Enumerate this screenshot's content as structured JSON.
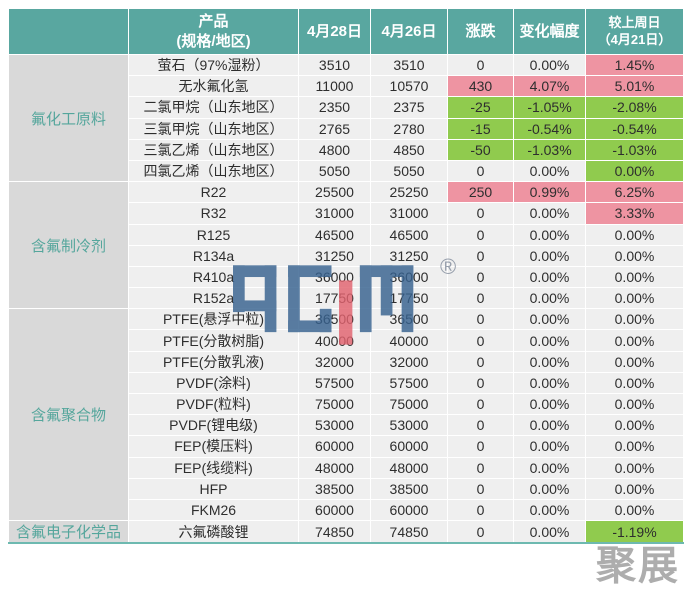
{
  "table": {
    "headers": {
      "category": "",
      "product_line1": "产品",
      "product_line2": "(规格/地区)",
      "date1": "4月28日",
      "date2": "4月26日",
      "change": "涨跌",
      "change_pct": "变化幅度",
      "week_line1": "较上周日",
      "week_line2": "（4月21日）"
    }
  },
  "chart_data": {
    "type": "table",
    "title": "氟化工产品价格涨跌表",
    "columns": [
      "产品(规格/地区)",
      "4月28日",
      "4月26日",
      "涨跌",
      "变化幅度",
      "较上周日（4月21日）"
    ],
    "categories": [
      {
        "label": "氟化工原料",
        "rows": 6
      },
      {
        "label": "含氟制冷剂",
        "rows": 6
      },
      {
        "label": "含氟聚合物",
        "rows": 10
      },
      {
        "label": "含氟电子化学品",
        "rows": 1
      }
    ],
    "rows": [
      {
        "product": "萤石（97%湿粉）",
        "apr28": "3510",
        "apr26": "3510",
        "change": "0",
        "change_pct": "0.00%",
        "vs_last_sun": "1.45%",
        "highlight": [
          "none",
          "none",
          "up"
        ]
      },
      {
        "product": "无水氟化氢",
        "apr28": "11000",
        "apr26": "10570",
        "change": "430",
        "change_pct": "4.07%",
        "vs_last_sun": "5.01%",
        "highlight": [
          "up",
          "up",
          "up"
        ]
      },
      {
        "product": "二氯甲烷（山东地区）",
        "apr28": "2350",
        "apr26": "2375",
        "change": "-25",
        "change_pct": "-1.05%",
        "vs_last_sun": "-2.08%",
        "highlight": [
          "down",
          "down",
          "down"
        ]
      },
      {
        "product": "三氯甲烷（山东地区）",
        "apr28": "2765",
        "apr26": "2780",
        "change": "-15",
        "change_pct": "-0.54%",
        "vs_last_sun": "-0.54%",
        "highlight": [
          "down",
          "down",
          "down"
        ]
      },
      {
        "product": "三氯乙烯（山东地区）",
        "apr28": "4800",
        "apr26": "4850",
        "change": "-50",
        "change_pct": "-1.03%",
        "vs_last_sun": "-1.03%",
        "highlight": [
          "down",
          "down",
          "down"
        ]
      },
      {
        "product": "四氯乙烯（山东地区）",
        "apr28": "5050",
        "apr26": "5050",
        "change": "0",
        "change_pct": "0.00%",
        "vs_last_sun": "0.00%",
        "highlight": [
          "none",
          "none",
          "down"
        ]
      },
      {
        "product": "R22",
        "apr28": "25500",
        "apr26": "25250",
        "change": "250",
        "change_pct": "0.99%",
        "vs_last_sun": "6.25%",
        "highlight": [
          "up",
          "up",
          "up"
        ]
      },
      {
        "product": "R32",
        "apr28": "31000",
        "apr26": "31000",
        "change": "0",
        "change_pct": "0.00%",
        "vs_last_sun": "3.33%",
        "highlight": [
          "none",
          "none",
          "up"
        ]
      },
      {
        "product": "R125",
        "apr28": "46500",
        "apr26": "46500",
        "change": "0",
        "change_pct": "0.00%",
        "vs_last_sun": "0.00%",
        "highlight": [
          "none",
          "none",
          "none"
        ]
      },
      {
        "product": "R134a",
        "apr28": "31250",
        "apr26": "31250",
        "change": "0",
        "change_pct": "0.00%",
        "vs_last_sun": "0.00%",
        "highlight": [
          "none",
          "none",
          "none"
        ]
      },
      {
        "product": "R410a",
        "apr28": "36000",
        "apr26": "36000",
        "change": "0",
        "change_pct": "0.00%",
        "vs_last_sun": "0.00%",
        "highlight": [
          "none",
          "none",
          "none"
        ]
      },
      {
        "product": "R152a",
        "apr28": "17750",
        "apr26": "17750",
        "change": "0",
        "change_pct": "0.00%",
        "vs_last_sun": "0.00%",
        "highlight": [
          "none",
          "none",
          "none"
        ]
      },
      {
        "product": "PTFE(悬浮中粒)",
        "apr28": "36500",
        "apr26": "36500",
        "change": "0",
        "change_pct": "0.00%",
        "vs_last_sun": "0.00%",
        "highlight": [
          "none",
          "none",
          "none"
        ]
      },
      {
        "product": "PTFE(分散树脂)",
        "apr28": "40000",
        "apr26": "40000",
        "change": "0",
        "change_pct": "0.00%",
        "vs_last_sun": "0.00%",
        "highlight": [
          "none",
          "none",
          "none"
        ]
      },
      {
        "product": "PTFE(分散乳液)",
        "apr28": "32000",
        "apr26": "32000",
        "change": "0",
        "change_pct": "0.00%",
        "vs_last_sun": "0.00%",
        "highlight": [
          "none",
          "none",
          "none"
        ]
      },
      {
        "product": "PVDF(涂料)",
        "apr28": "57500",
        "apr26": "57500",
        "change": "0",
        "change_pct": "0.00%",
        "vs_last_sun": "0.00%",
        "highlight": [
          "none",
          "none",
          "none"
        ]
      },
      {
        "product": "PVDF(粒料)",
        "apr28": "75000",
        "apr26": "75000",
        "change": "0",
        "change_pct": "0.00%",
        "vs_last_sun": "0.00%",
        "highlight": [
          "none",
          "none",
          "none"
        ]
      },
      {
        "product": "PVDF(锂电级)",
        "apr28": "53000",
        "apr26": "53000",
        "change": "0",
        "change_pct": "0.00%",
        "vs_last_sun": "0.00%",
        "highlight": [
          "none",
          "none",
          "none"
        ]
      },
      {
        "product": "FEP(模压料)",
        "apr28": "60000",
        "apr26": "60000",
        "change": "0",
        "change_pct": "0.00%",
        "vs_last_sun": "0.00%",
        "highlight": [
          "none",
          "none",
          "none"
        ]
      },
      {
        "product": "FEP(线缆料)",
        "apr28": "48000",
        "apr26": "48000",
        "change": "0",
        "change_pct": "0.00%",
        "vs_last_sun": "0.00%",
        "highlight": [
          "none",
          "none",
          "none"
        ]
      },
      {
        "product": "HFP",
        "apr28": "38500",
        "apr26": "38500",
        "change": "0",
        "change_pct": "0.00%",
        "vs_last_sun": "0.00%",
        "highlight": [
          "none",
          "none",
          "none"
        ]
      },
      {
        "product": "FKM26",
        "apr28": "60000",
        "apr26": "60000",
        "change": "0",
        "change_pct": "0.00%",
        "vs_last_sun": "0.00%",
        "highlight": [
          "none",
          "none",
          "none"
        ]
      },
      {
        "product": "六氟磷酸锂",
        "apr28": "74850",
        "apr26": "74850",
        "change": "0",
        "change_pct": "0.00%",
        "vs_last_sun": "-1.19%",
        "highlight": [
          "none",
          "none",
          "down"
        ]
      }
    ]
  },
  "watermarks": {
    "logo_text": "ACM",
    "registered_symbol": "®",
    "corner_text": "聚展"
  },
  "colors": {
    "header_bg": "#59a7a0",
    "header_text": "#ffffff",
    "category_bg": "#d9d9d9",
    "category_text": "#55a69c",
    "row_bg": "#efefef",
    "rise_bg": "#ee94a2",
    "fall_bg": "#90cb4e",
    "logo_blue": "#37628f",
    "logo_red": "#e2636f"
  }
}
